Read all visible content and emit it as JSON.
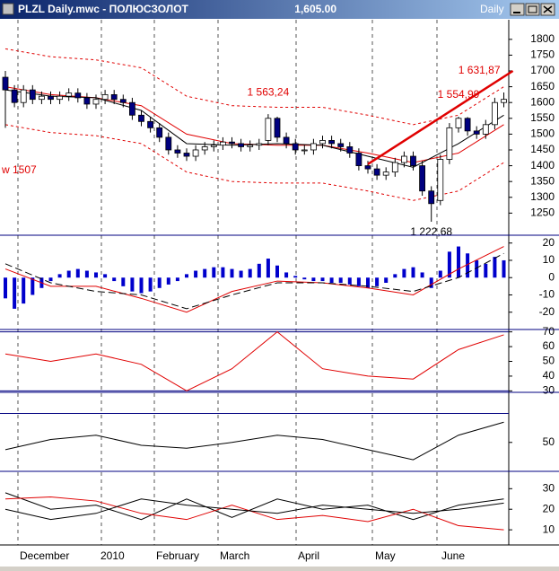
{
  "window": {
    "title": "PLZL Daily.mwc - ПОЛЮСЗОЛОТ",
    "price": "1,605.00",
    "period": "Daily"
  },
  "x_axis": {
    "labels": [
      "December",
      "2010",
      "February",
      "March",
      "April",
      "May",
      "June"
    ]
  },
  "chart_data": [
    {
      "type": "candlestick",
      "open": [
        1680,
        1640,
        1600,
        1640,
        1610,
        1620,
        1610,
        1620,
        1630,
        1615,
        1595,
        1610,
        1625,
        1610,
        1600,
        1560,
        1540,
        1520,
        1490,
        1450,
        1440,
        1430,
        1450,
        1460,
        1465,
        1475,
        1470,
        1460,
        1465,
        1480,
        1550,
        1490,
        1470,
        1450,
        1450,
        1470,
        1480,
        1470,
        1460,
        1440,
        1400,
        1390,
        1370,
        1380,
        1410,
        1430,
        1400,
        1320,
        1290,
        1420,
        1520,
        1550,
        1510,
        1500,
        1530,
        1600
      ],
      "high": [
        1700,
        1655,
        1655,
        1655,
        1635,
        1635,
        1635,
        1645,
        1645,
        1630,
        1625,
        1640,
        1640,
        1625,
        1615,
        1575,
        1555,
        1535,
        1505,
        1465,
        1455,
        1465,
        1475,
        1480,
        1490,
        1490,
        1485,
        1480,
        1485,
        1563.24,
        1555,
        1505,
        1485,
        1465,
        1485,
        1495,
        1495,
        1485,
        1475,
        1455,
        1415,
        1405,
        1395,
        1425,
        1445,
        1445,
        1415,
        1335,
        1435,
        1535,
        1554.99,
        1554,
        1525,
        1545,
        1615,
        1631.87
      ],
      "low": [
        1520,
        1585,
        1585,
        1595,
        1595,
        1595,
        1595,
        1605,
        1600,
        1580,
        1580,
        1595,
        1595,
        1585,
        1545,
        1525,
        1505,
        1475,
        1435,
        1425,
        1415,
        1415,
        1435,
        1445,
        1450,
        1455,
        1445,
        1445,
        1450,
        1465,
        1475,
        1455,
        1435,
        1435,
        1435,
        1455,
        1455,
        1445,
        1425,
        1385,
        1375,
        1355,
        1355,
        1365,
        1395,
        1385,
        1305,
        1222.68,
        1275,
        1405,
        1505,
        1495,
        1485,
        1485,
        1515,
        1585
      ],
      "close": [
        1640,
        1600,
        1640,
        1610,
        1620,
        1610,
        1620,
        1630,
        1615,
        1595,
        1610,
        1625,
        1610,
        1600,
        1560,
        1540,
        1520,
        1490,
        1450,
        1440,
        1430,
        1450,
        1460,
        1465,
        1475,
        1470,
        1460,
        1465,
        1470,
        1550,
        1490,
        1470,
        1450,
        1450,
        1470,
        1480,
        1470,
        1460,
        1440,
        1400,
        1390,
        1370,
        1380,
        1410,
        1430,
        1400,
        1320,
        1280,
        1420,
        1520,
        1550,
        1510,
        1500,
        1530,
        1600,
        1610
      ],
      "up_color": "#ffffff",
      "down_color": "#000080",
      "series_x": [
        0,
        5,
        10,
        15,
        20,
        25,
        30,
        35,
        40,
        45,
        50,
        55
      ],
      "series": [
        {
          "color": "#e00000",
          "dashed": true,
          "values": [
            1770,
            1745,
            1735,
            1710,
            1620,
            1590,
            1585,
            1585,
            1560,
            1530,
            1560,
            1650
          ]
        },
        {
          "color": "#e00000",
          "values": [
            1650,
            1625,
            1615,
            1590,
            1500,
            1470,
            1465,
            1465,
            1440,
            1410,
            1440,
            1530
          ]
        },
        {
          "color": "#000000",
          "values": [
            1640,
            1620,
            1615,
            1575,
            1470,
            1465,
            1470,
            1465,
            1430,
            1395,
            1470,
            1560
          ]
        },
        {
          "color": "#e00000",
          "dashed": true,
          "values": [
            1530,
            1505,
            1495,
            1470,
            1380,
            1350,
            1345,
            1345,
            1320,
            1290,
            1320,
            1410
          ]
        }
      ],
      "trendline": {
        "color": "#e00000",
        "x": [
          40,
          56
        ],
        "values": [
          1405,
          1700
        ]
      },
      "annotations": [
        {
          "label": "1 563,24",
          "value": 1563.24
        },
        {
          "label": "1 554,99",
          "value": 1554.99
        },
        {
          "label": "1 631,87",
          "value": 1631.87
        },
        {
          "label": "1 222,68",
          "value": 1222.68
        }
      ],
      "side_note": "w 1507",
      "ylim": [
        1180,
        1862
      ],
      "yticks": [
        1250,
        1300,
        1350,
        1400,
        1450,
        1500,
        1550,
        1600,
        1650,
        1700,
        1750,
        1800
      ]
    },
    {
      "type": "bar",
      "values": [
        -12,
        -18,
        -15,
        -10,
        -6,
        -2,
        2,
        4,
        5,
        4,
        3,
        2,
        -2,
        -5,
        -8,
        -9,
        -8,
        -6,
        -4,
        -2,
        2,
        4,
        5,
        6,
        6,
        5,
        4,
        5,
        8,
        11,
        7,
        3,
        1,
        -1,
        -2,
        -2,
        -3,
        -3,
        -4,
        -5,
        -6,
        -5,
        -3,
        2,
        5,
        6,
        3,
        -6,
        4,
        15,
        18,
        14,
        10,
        8,
        12,
        10
      ],
      "color": "#0000cc",
      "series_x": [
        0,
        5,
        10,
        15,
        20,
        25,
        30,
        35,
        40,
        45,
        50,
        55
      ],
      "series": [
        {
          "color": "#e00000",
          "values": [
            5,
            -5,
            -5,
            -12,
            -20,
            -8,
            -2,
            -3,
            -6,
            -10,
            5,
            18
          ]
        },
        {
          "color": "#000000",
          "dashed": true,
          "values": [
            8,
            -3,
            -8,
            -10,
            -18,
            -10,
            -3,
            -3,
            -5,
            -8,
            0,
            14
          ]
        }
      ],
      "ylim": [
        -30,
        24
      ],
      "yticks": [
        20,
        10,
        0,
        -10,
        -20
      ]
    },
    {
      "type": "line",
      "series_x": [
        0,
        5,
        10,
        15,
        20,
        25,
        30,
        35,
        40,
        45,
        50,
        55
      ],
      "series": [
        {
          "color": "#e00000",
          "values": [
            55,
            50,
            55,
            48,
            30,
            45,
            70,
            45,
            40,
            38,
            58,
            68
          ]
        }
      ],
      "levels": [
        70,
        30
      ],
      "level_color": "#000080",
      "ylim": [
        29,
        71
      ],
      "yticks": [
        30,
        40,
        50,
        60,
        70
      ]
    },
    {
      "type": "line",
      "series_x": [
        0,
        5,
        10,
        15,
        20,
        25,
        30,
        35,
        40,
        45,
        50,
        55
      ],
      "series": [
        {
          "color": "#000000",
          "values": [
            45,
            52,
            55,
            48,
            46,
            50,
            55,
            52,
            45,
            38,
            55,
            64
          ]
        }
      ],
      "levels": [
        70,
        30
      ],
      "level_color": "#000080",
      "ylim": [
        30,
        84
      ],
      "yticks": [
        50
      ]
    },
    {
      "type": "line",
      "series_x": [
        0,
        5,
        10,
        15,
        20,
        25,
        30,
        35,
        40,
        45,
        50,
        55
      ],
      "series": [
        {
          "color": "#000000",
          "values": [
            28,
            20,
            22,
            15,
            25,
            16,
            25,
            20,
            22,
            15,
            22,
            25
          ]
        },
        {
          "color": "#e00000",
          "values": [
            25,
            26,
            24,
            18,
            15,
            22,
            15,
            17,
            14,
            20,
            12,
            10
          ]
        },
        {
          "color": "#000000",
          "values": [
            20,
            15,
            18,
            25,
            22,
            20,
            18,
            22,
            20,
            18,
            20,
            23
          ]
        }
      ],
      "ylim": [
        3.5,
        38
      ],
      "yticks": [
        10,
        20,
        30
      ]
    }
  ]
}
